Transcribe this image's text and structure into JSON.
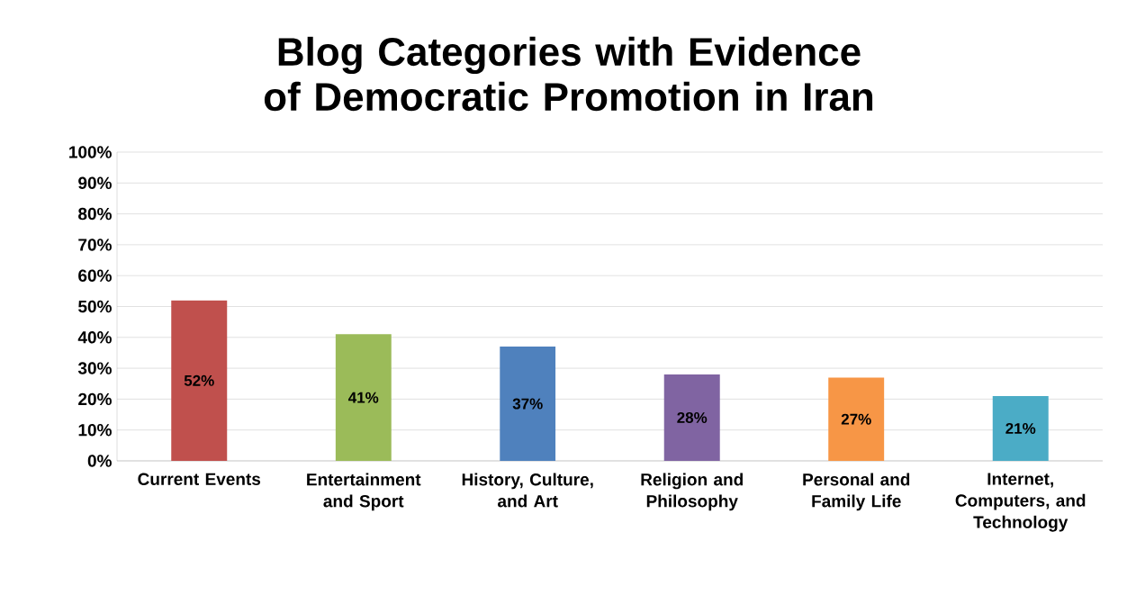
{
  "chart_data": {
    "type": "bar",
    "title": "Blog Categories with Evidence of Democratic Promotion in Iran",
    "categories": [
      "Current Events",
      "Entertainment and Sport",
      "History, Culture, and Art",
      "Religion and Philosophy",
      "Personal and Family Life",
      "Internet, Computers, and Technology"
    ],
    "values": [
      52,
      41,
      37,
      28,
      27,
      21
    ],
    "colors": [
      "#c0504d",
      "#9bbb59",
      "#4f81bd",
      "#8064a2",
      "#f79646",
      "#4bacc6"
    ],
    "value_labels": [
      "52%",
      "41%",
      "37%",
      "28%",
      "27%",
      "21%"
    ],
    "ylim": [
      0,
      100
    ],
    "yticks": [
      {
        "value": 0,
        "label": "0%"
      },
      {
        "value": 10,
        "label": "10%"
      },
      {
        "value": 20,
        "label": "20%"
      },
      {
        "value": 30,
        "label": "30%"
      },
      {
        "value": 40,
        "label": "40%"
      },
      {
        "value": 50,
        "label": "50%"
      },
      {
        "value": 60,
        "label": "60%"
      },
      {
        "value": 70,
        "label": "70%"
      },
      {
        "value": 80,
        "label": "80%"
      },
      {
        "value": 90,
        "label": "90%"
      },
      {
        "value": 100,
        "label": "100%"
      }
    ],
    "grid": "y"
  }
}
